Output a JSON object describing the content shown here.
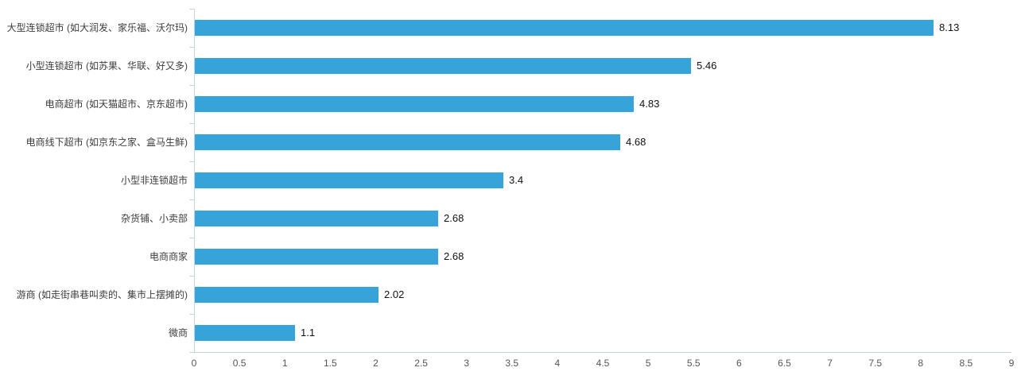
{
  "chart": {
    "background": "#ffffff"
  },
  "chart_data": {
    "type": "bar",
    "orientation": "horizontal",
    "title": "",
    "xlabel": "",
    "ylabel": "",
    "grid": false,
    "legend": null,
    "categories": [
      "大型连锁超市 (如大润发、家乐福、沃尔玛)",
      "小型连锁超市 (如苏果、华联、好又多)",
      "电商超市 (如天猫超市、京东超市)",
      "电商线下超市 (如京东之家、盒马生鲜)",
      "小型非连锁超市",
      "杂货铺、小卖部",
      "电商商家",
      "游商 (如走街串巷叫卖的、集市上摆摊的)",
      "微商"
    ],
    "values": [
      8.13,
      5.46,
      4.83,
      4.68,
      3.4,
      2.68,
      2.68,
      2.02,
      1.1
    ],
    "value_labels": [
      "8.13",
      "5.46",
      "4.83",
      "4.68",
      "3.4",
      "2.68",
      "2.68",
      "2.02",
      "1.1"
    ],
    "xlim": [
      0,
      9
    ],
    "x_tick_step": 0.5,
    "x_tick_labels": [
      "0",
      "0.5",
      "1",
      "1.5",
      "2",
      "2.5",
      "3",
      "3.5",
      "4",
      "4.5",
      "5",
      "5.5",
      "6",
      "6.5",
      "7",
      "7.5",
      "8",
      "8.5",
      "9"
    ],
    "colors": {
      "bar": "#36a3d9",
      "axis_line": "#c3d5e0",
      "category_label": "#3c3c3c",
      "x_tick_label": "#555555",
      "value_label": "#111111"
    }
  }
}
